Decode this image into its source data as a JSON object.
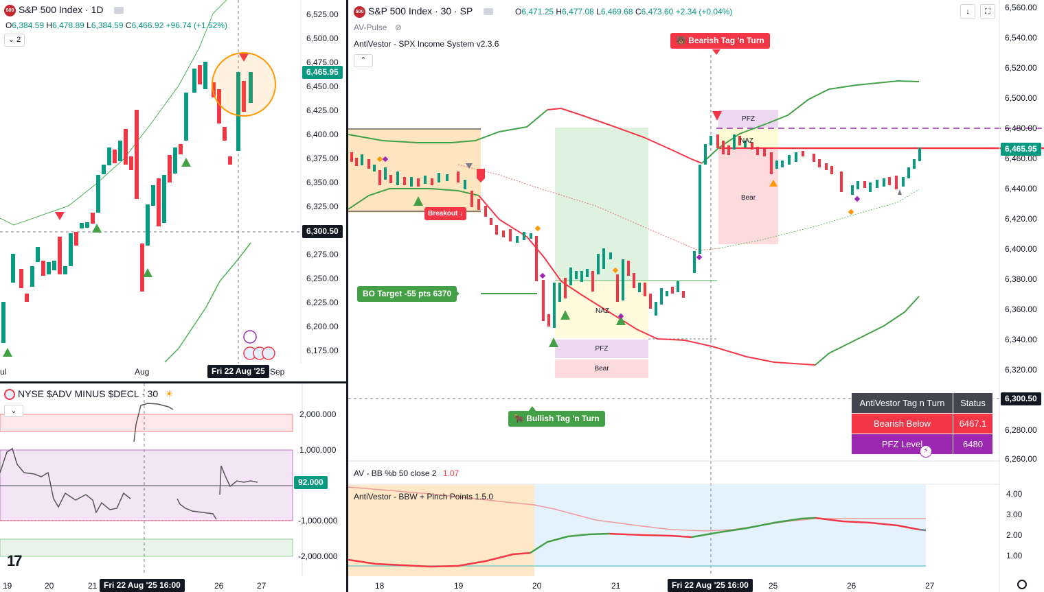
{
  "left_chart": {
    "symbol_badge": "500",
    "title": "S&P 500 Index · 1D",
    "ohlc": {
      "o_label": "O",
      "o": "6,384.59",
      "h_label": "H",
      "h": "6,478.89",
      "l_label": "L",
      "l": "6,384.59",
      "c_label": "C",
      "c": "6,466.92",
      "change": "+96.74 (+1.52%)"
    },
    "collapse_count": "2",
    "price_axis": [
      "6,525.00",
      "6,500.00",
      "6,475.00",
      "6,450.00",
      "6,425.00",
      "6,400.00",
      "6,375.00",
      "6,350.00",
      "6,325.00",
      "6,300.50",
      "6,275.00",
      "6,250.00",
      "6,225.00",
      "6,200.00",
      "6,175.00"
    ],
    "current_price": "6,465.95",
    "crosshair_price": "6,300.50",
    "time_axis": [
      "ul",
      "Aug",
      "Sep"
    ],
    "crosshair_time": "Fri 22 Aug '25"
  },
  "breadth_chart": {
    "title": "NYSE $ADV MINUS $DECL · 30",
    "price_axis": [
      "2,000.000",
      "1,000.000",
      "-1,000.000",
      "-2,000.000"
    ],
    "current_value": "92.000",
    "time_axis": [
      "19",
      "20",
      "21",
      "26",
      "27"
    ],
    "crosshair_time": "Fri 22 Aug '25   16:00",
    "logo": "17"
  },
  "main_chart": {
    "symbol_badge": "500",
    "title": "S&P 500 Index · 30 · SP",
    "ohlc": {
      "o_label": "O",
      "o": "6,471.25",
      "h_label": "H",
      "h": "6,477.08",
      "l_label": "L",
      "l": "6,469.68",
      "c_label": "C",
      "c": "6,473.60",
      "change": "+2.34 (+0.04%)"
    },
    "indicator1": "AV-Pulse",
    "indicator2": "AntiVestor - SPX Income System v2.3.6",
    "price_axis": [
      "6,560.00",
      "6,540.00",
      "6,520.00",
      "6,500.00",
      "6,480.00",
      "6,460.00",
      "6,440.00",
      "6,420.00",
      "6,400.00",
      "6,380.00",
      "6,360.00",
      "6,340.00",
      "6,320.00",
      "6,300.50",
      "6,280.00",
      "6,260.00"
    ],
    "current_price": "6,465.95",
    "crosshair_price": "6,300.50",
    "time_axis": [
      "18",
      "19",
      "20",
      "21",
      "25",
      "26",
      "27"
    ],
    "crosshair_time": "Fri 22 Aug '25   16:00",
    "tags": {
      "bearish": "🐻 Bearish Tag 'n Turn",
      "bullish": "🐂 Bullish Tag 'n Turn",
      "breakout": "Breakout ↓",
      "bo_target": "BO Target -55 pts 6370"
    },
    "zones": {
      "pfz": "PFZ",
      "naz": "NAZ",
      "bear": "Bear"
    },
    "table": {
      "header_left": "AntiVestor Tag n Turn",
      "header_right": "Status",
      "row1_left": "Bearish Below",
      "row1_right": "6467.1",
      "row2_left": "PFZ Level",
      "row2_right": "6480"
    }
  },
  "lower_pane": {
    "title": "AV - BB %b 50 close 2",
    "value": "1.07",
    "indicator": "AntiVestor - BBW + Pinch Points 1.5.0",
    "axis": [
      "4.00",
      "3.00",
      "2.00",
      "1.00"
    ]
  },
  "colors": {
    "up": "#089981",
    "down": "#f23645",
    "green_tag": "#43a047",
    "red_tag": "#f23645",
    "purple": "#9c27b0",
    "label_dark": "#131722"
  }
}
